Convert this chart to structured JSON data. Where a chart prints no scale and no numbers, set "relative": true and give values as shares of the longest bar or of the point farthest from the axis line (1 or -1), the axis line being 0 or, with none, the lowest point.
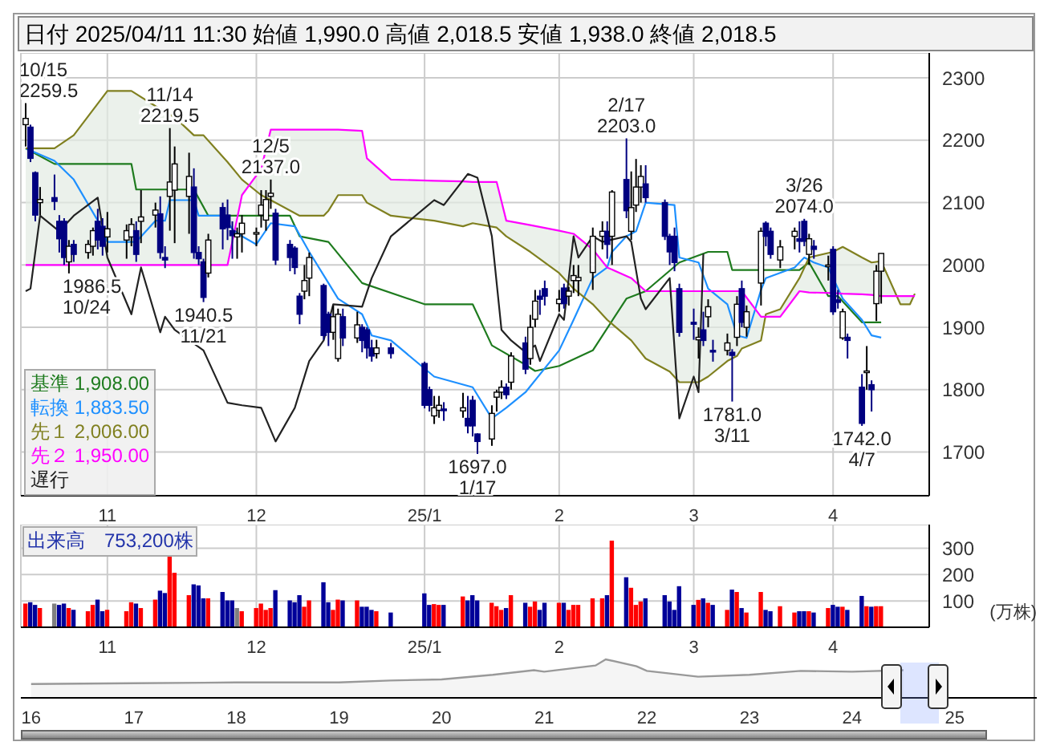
{
  "chart_data": [
    {
      "type": "candlestick",
      "title": "日付 2025/04/11 11:30 始値 1,990.0 高値 2,018.5 安値 1,938.0 終値 2,018.5",
      "x": [
        "2024-10-15",
        "2024-10-16",
        "2024-10-17",
        "2024-10-18",
        "2024-10-21",
        "2024-10-22",
        "2024-10-23",
        "2024-10-24",
        "2024-10-25",
        "2024-10-28",
        "2024-10-29",
        "2024-10-30",
        "2024-10-31",
        "2024-11-01",
        "2024-11-05",
        "2024-11-06",
        "2024-11-07",
        "2024-11-08",
        "2024-11-11",
        "2024-11-12",
        "2024-11-13",
        "2024-11-14",
        "2024-11-15",
        "2024-11-18",
        "2024-11-19",
        "2024-11-20",
        "2024-11-21",
        "2024-11-22",
        "2024-11-25",
        "2024-11-26",
        "2024-11-27",
        "2024-11-28",
        "2024-11-29",
        "2024-12-02",
        "2024-12-03",
        "2024-12-04",
        "2024-12-05",
        "2024-12-06",
        "2024-12-09",
        "2024-12-10",
        "2024-12-11",
        "2024-12-12",
        "2024-12-13",
        "2024-12-16",
        "2024-12-17",
        "2024-12-18",
        "2024-12-19",
        "2024-12-20",
        "2024-12-23",
        "2024-12-24",
        "2024-12-25",
        "2024-12-26",
        "2024-12-27",
        "2024-12-30",
        "2025-01-06",
        "2025-01-07",
        "2025-01-08",
        "2025-01-09",
        "2025-01-10",
        "2025-01-14",
        "2025-01-15",
        "2025-01-16",
        "2025-01-17",
        "2025-01-20",
        "2025-01-21",
        "2025-01-22",
        "2025-01-23",
        "2025-01-24",
        "2025-01-27",
        "2025-01-28",
        "2025-01-29",
        "2025-01-30",
        "2025-01-31",
        "2025-02-03",
        "2025-02-04",
        "2025-02-05",
        "2025-02-06",
        "2025-02-07",
        "2025-02-10",
        "2025-02-12",
        "2025-02-13",
        "2025-02-14",
        "2025-02-17",
        "2025-02-18",
        "2025-02-19",
        "2025-02-20",
        "2025-02-21",
        "2025-02-25",
        "2025-02-26",
        "2025-02-27",
        "2025-02-28",
        "2025-03-03",
        "2025-03-04",
        "2025-03-05",
        "2025-03-06",
        "2025-03-07",
        "2025-03-10",
        "2025-03-11",
        "2025-03-12",
        "2025-03-13",
        "2025-03-14",
        "2025-03-17",
        "2025-03-18",
        "2025-03-19",
        "2025-03-21",
        "2025-03-24",
        "2025-03-25",
        "2025-03-26",
        "2025-03-27",
        "2025-03-28",
        "2025-03-31",
        "2025-04-01",
        "2025-04-02",
        "2025-04-03",
        "2025-04-04",
        "2025-04-07",
        "2025-04-08",
        "2025-04-09",
        "2025-04-10",
        "2025-04-11"
      ],
      "ohlc": [
        [
          2225,
          2259.5,
          2190,
          2235
        ],
        [
          2221,
          2225,
          2165,
          2171
        ],
        [
          2148,
          2150,
          2070,
          2080
        ],
        [
          2100,
          2125,
          2080,
          2105
        ],
        [
          2108,
          2145,
          2088,
          2102
        ],
        [
          2070,
          2080,
          2020,
          2042
        ],
        [
          2070,
          2075,
          2000,
          2012
        ],
        [
          2005,
          2040,
          1986.5,
          2030
        ],
        [
          2033,
          2040,
          2005,
          2017
        ],
        [
          2020,
          2040,
          2010,
          2033
        ],
        [
          2030,
          2060,
          2015,
          2055
        ],
        [
          2070,
          2090,
          2025,
          2040
        ],
        [
          2062,
          2075,
          2015,
          2030
        ],
        [
          2045,
          2085,
          2020,
          2058
        ],
        [
          2040,
          2065,
          2010,
          2055
        ],
        [
          2045,
          2075,
          2030,
          2065
        ],
        [
          2055,
          2070,
          2005,
          2017
        ],
        [
          2070,
          2120,
          2035,
          2077
        ],
        [
          2080,
          2100,
          2060,
          2088
        ],
        [
          2082,
          2110,
          2010,
          2020
        ],
        [
          2012,
          2030,
          1995,
          2008
        ],
        [
          2110,
          2219.5,
          2055,
          2133
        ],
        [
          2120,
          2190,
          2035,
          2162
        ],
        [
          2110,
          2180,
          2050,
          2142
        ],
        [
          2125,
          2155,
          2010,
          2020
        ],
        [
          2020,
          2030,
          2000,
          2010
        ],
        [
          2005,
          2010,
          1940.5,
          1948
        ],
        [
          1987,
          2050,
          1980,
          2040
        ],
        [
          2092,
          2100,
          2025,
          2058
        ],
        [
          2080,
          2105,
          2040,
          2060
        ],
        [
          2055,
          2070,
          2010,
          2047
        ],
        [
          2045,
          2060,
          2010,
          2050
        ],
        [
          2050,
          2080,
          2020,
          2067
        ],
        [
          2050,
          2060,
          2030,
          2052
        ],
        [
          2080,
          2120,
          2060,
          2096
        ],
        [
          2072,
          2120,
          2055,
          2105
        ],
        [
          2110,
          2137,
          2090,
          2115
        ],
        [
          2083,
          2090,
          2000,
          2008
        ],
        [
          2033,
          2040,
          1990,
          2012
        ],
        [
          2027,
          2030,
          1985,
          1996
        ],
        [
          1950,
          1955,
          1905,
          1921
        ],
        [
          1958,
          2000,
          1945,
          1975
        ],
        [
          1979,
          2020,
          1950,
          2012
        ],
        [
          1967,
          1970,
          1880,
          1887
        ],
        [
          1921,
          1925,
          1870,
          1892
        ],
        [
          1892,
          1935,
          1880,
          1917
        ],
        [
          1850,
          1930,
          1845,
          1921
        ],
        [
          1917,
          1930,
          1870,
          1883
        ],
        [
          1883,
          1925,
          1875,
          1904
        ],
        [
          1900,
          1905,
          1860,
          1879
        ],
        [
          1896,
          1900,
          1850,
          1867
        ],
        [
          1867,
          1880,
          1845,
          1854
        ],
        [
          1858,
          1880,
          1850,
          1867
        ],
        [
          1867,
          1875,
          1850,
          1858
        ],
        [
          1842,
          1845,
          1770,
          1775
        ],
        [
          1800,
          1805,
          1765,
          1775
        ],
        [
          1758,
          1790,
          1745,
          1771
        ],
        [
          1767,
          1790,
          1755,
          1775
        ],
        [
          1769,
          1780,
          1750,
          1767
        ],
        [
          1766,
          1795,
          1755,
          1771
        ],
        [
          1754,
          1790,
          1730,
          1742
        ],
        [
          1783,
          1790,
          1725,
          1742
        ],
        [
          1729,
          1730,
          1697,
          1717
        ],
        [
          1721,
          1775,
          1710,
          1762
        ],
        [
          1788,
          1800,
          1765,
          1796
        ],
        [
          1796,
          1815,
          1785,
          1804
        ],
        [
          1804,
          1810,
          1785,
          1792
        ],
        [
          1812,
          1860,
          1800,
          1854
        ],
        [
          1875,
          1885,
          1825,
          1833
        ],
        [
          1850,
          1920,
          1840,
          1900
        ],
        [
          1913,
          1960,
          1900,
          1942
        ],
        [
          1950,
          1960,
          1920,
          1945
        ],
        [
          1962,
          1975,
          1935,
          1950
        ],
        [
          1938,
          1960,
          1925,
          1945
        ],
        [
          1963,
          1970,
          1930,
          1938
        ],
        [
          1950,
          1965,
          1935,
          1958
        ],
        [
          1975,
          2000,
          1955,
          1983
        ],
        [
          1975,
          2000,
          1950,
          1980
        ],
        [
          1988,
          2060,
          1960,
          2046
        ],
        [
          2046,
          2070,
          2025,
          2054
        ],
        [
          2054,
          2070,
          2010,
          2033
        ],
        [
          2046,
          2120,
          2000,
          2117
        ],
        [
          2137,
          2203,
          2075,
          2087
        ],
        [
          2054,
          2150,
          2040,
          2092
        ],
        [
          2096,
          2170,
          2085,
          2125
        ],
        [
          2125,
          2160,
          2100,
          2142
        ],
        [
          2130,
          2160,
          2100,
          2108
        ],
        [
          2100,
          2105,
          2040,
          2046
        ],
        [
          2046,
          2050,
          2000,
          2021
        ],
        [
          2046,
          2060,
          1990,
          2004
        ],
        [
          1962,
          1970,
          1885,
          1892
        ],
        [
          1908,
          1930,
          1880,
          1905
        ],
        [
          1880,
          1900,
          1850,
          1884
        ],
        [
          1896,
          1925,
          1870,
          1879
        ],
        [
          1917,
          1945,
          1900,
          1933
        ],
        [
          1863,
          1880,
          1845,
          1862
        ],
        [
          1863,
          1890,
          1855,
          1875
        ],
        [
          1860,
          1865,
          1781,
          1855
        ],
        [
          1884,
          1950,
          1870,
          1937
        ],
        [
          1962,
          1975,
          1900,
          1908
        ],
        [
          1900,
          1935,
          1885,
          1925
        ],
        [
          1971,
          2060,
          1935,
          2054
        ],
        [
          2067,
          2070,
          2030,
          2046
        ],
        [
          2054,
          2060,
          2010,
          2017
        ],
        [
          2008,
          2040,
          1995,
          2029
        ],
        [
          2046,
          2060,
          2025,
          2054
        ],
        [
          2042,
          2070,
          2020,
          2038
        ],
        [
          2070,
          2074,
          2030,
          2038
        ],
        [
          2017,
          2050,
          2000,
          2042
        ],
        [
          2030,
          2040,
          2010,
          2025
        ],
        [
          1998,
          2015,
          1975,
          2000
        ],
        [
          2025,
          2030,
          1920,
          1925
        ],
        [
          1944,
          1960,
          1930,
          1940
        ],
        [
          1883,
          1930,
          1880,
          1925
        ],
        [
          1884,
          1890,
          1850,
          1879
        ],
        [
          1804,
          1825,
          1742,
          1746
        ],
        [
          1828,
          1870,
          1800,
          1830
        ],
        [
          1808,
          1815,
          1765,
          1800
        ],
        [
          1938,
          2000,
          1910,
          1990
        ],
        [
          1990,
          2018.5,
          1938,
          2018.5
        ]
      ],
      "colors": [
        "#ffffff",
        "#000080",
        "#000080",
        "#ffffff",
        "#000080",
        "#000080",
        "#000080",
        "#ffffff",
        "#000080",
        "#ffffff",
        "#ffffff",
        "#000080",
        "#000080",
        "#ffffff",
        "#ffffff",
        "#ffffff",
        "#000080",
        "#ffffff",
        "#ffffff",
        "#000080",
        "#000080",
        "#ffffff",
        "#ffffff",
        "#ffffff",
        "#000080",
        "#000080",
        "#000080",
        "#ffffff",
        "#000080",
        "#000080",
        "#000080",
        "#ffffff",
        "#ffffff",
        "#ffffff",
        "#ffffff",
        "#ffffff",
        "#ffffff",
        "#000080",
        "#000080",
        "#000080",
        "#000080",
        "#ffffff",
        "#ffffff",
        "#000080",
        "#000080",
        "#ffffff",
        "#ffffff",
        "#000080",
        "#ffffff",
        "#000080",
        "#000080",
        "#000080",
        "#ffffff",
        "#000080",
        "#000080",
        "#000080",
        "#ffffff",
        "#ffffff",
        "#000080",
        "#ffffff",
        "#000080",
        "#000080",
        "#000080",
        "#ffffff",
        "#ffffff",
        "#ffffff",
        "#000080",
        "#ffffff",
        "#000080",
        "#ffffff",
        "#ffffff",
        "#000080",
        "#000080",
        "#ffffff",
        "#000080",
        "#ffffff",
        "#ffffff",
        "#ffffff",
        "#ffffff",
        "#ffffff",
        "#000080",
        "#ffffff",
        "#000080",
        "#ffffff",
        "#ffffff",
        "#ffffff",
        "#000080",
        "#000080",
        "#000080",
        "#000080",
        "#000080",
        "#000080",
        "#ffffff",
        "#000080",
        "#ffffff",
        "#000080",
        "#ffffff",
        "#000080",
        "#ffffff",
        "#000080",
        "#ffffff",
        "#ffffff",
        "#000080",
        "#000080",
        "#ffffff",
        "#ffffff",
        "#000080",
        "#000080",
        "#ffffff",
        "#000080",
        "#ffffff",
        "#000080",
        "#000080",
        "#ffffff",
        "#000080",
        "#000080",
        "#ffffff",
        "#000080",
        "#ffffff",
        "#ffffff"
      ],
      "series": [
        {
          "type": "line",
          "name": "基準 1,908.00",
          "color": "#1e7b1e",
          "x": [
            "2024-10-15",
            "2024-10-21",
            "2024-11-06",
            "2024-11-07",
            "2024-11-19",
            "2024-11-22",
            "2024-12-09",
            "2024-12-11",
            "2024-12-17",
            "2024-12-24",
            "2025-01-06",
            "2025-01-16",
            "2025-01-20",
            "2025-01-27",
            "2025-01-29",
            "2025-02-03",
            "2025-02-10",
            "2025-02-17",
            "2025-02-21",
            "2025-02-28",
            "2025-03-06",
            "2025-03-10",
            "2025-03-11",
            "2025-03-25",
            "2025-03-27",
            "2025-03-31",
            "2025-04-02",
            "2025-04-07",
            "2025-04-11"
          ],
          "values": [
            2187,
            2162,
            2162,
            2121,
            2121,
            2079,
            2079,
            2046,
            2037,
            1971,
            1937,
            1937,
            1871,
            1840,
            1830,
            1838,
            1863,
            1946,
            1958,
            2004,
            2021,
            2021,
            1992,
            1992,
            2004,
            1950,
            1950,
            1908,
            1908
          ]
        },
        {
          "type": "line",
          "name": "転換 1,883.50",
          "color": "#1e90ff",
          "x": [
            "2024-10-15",
            "2024-10-21",
            "2024-10-25",
            "2024-10-30",
            "2024-11-01",
            "2024-11-07",
            "2024-11-11",
            "2024-11-13",
            "2024-11-14",
            "2024-11-19",
            "2024-11-20",
            "2024-11-25",
            "2024-11-27",
            "2024-11-29",
            "2024-12-02",
            "2024-12-05",
            "2024-12-10",
            "2024-12-13",
            "2024-12-17",
            "2024-12-19",
            "2024-12-24",
            "2024-12-26",
            "2024-12-30",
            "2025-01-08",
            "2025-01-16",
            "2025-01-20",
            "2025-01-23",
            "2025-01-27",
            "2025-02-03",
            "2025-02-06",
            "2025-02-10",
            "2025-02-13",
            "2025-02-14",
            "2025-02-17",
            "2025-02-19",
            "2025-02-21",
            "2025-02-27",
            "2025-02-28",
            "2025-03-04",
            "2025-03-06",
            "2025-03-10",
            "2025-03-12",
            "2025-03-14",
            "2025-03-17",
            "2025-03-18",
            "2025-03-24",
            "2025-03-26",
            "2025-03-28",
            "2025-03-31",
            "2025-04-01",
            "2025-04-03",
            "2025-04-07",
            "2025-04-09",
            "2025-04-11"
          ],
          "values": [
            2187,
            2167,
            2137,
            2071,
            2037,
            2037,
            2071,
            2071,
            2104,
            2104,
            2079,
            2079,
            2058,
            2046,
            2033,
            2067,
            2062,
            2021,
            1971,
            1946,
            1921,
            1887,
            1879,
            1821,
            1804,
            1754,
            1771,
            1796,
            1863,
            1912,
            1979,
            1996,
            2021,
            2046,
            2054,
            2100,
            2096,
            2012,
            2004,
            1962,
            1937,
            1887,
            1883,
            1960,
            1979,
            1996,
            2012,
            2004,
            1996,
            1979,
            1946,
            1912,
            1887,
            1883.5
          ]
        },
        {
          "type": "line",
          "name": "先１ 2,006.00",
          "color": "#808020",
          "x": [
            "2024-10-15",
            "2024-10-21",
            "2024-10-25",
            "2024-11-01",
            "2024-11-06",
            "2024-11-12",
            "2024-11-15",
            "2024-11-19",
            "2024-11-21",
            "2024-11-26",
            "2024-11-29",
            "2024-12-03",
            "2024-12-05",
            "2024-12-11",
            "2024-12-16",
            "2024-12-17",
            "2024-12-19",
            "2024-12-24",
            "2024-12-25",
            "2024-12-30",
            "2025-01-08",
            "2025-01-14",
            "2025-01-16",
            "2025-01-21",
            "2025-01-23",
            "2025-01-28",
            "2025-02-03",
            "2025-02-06",
            "2025-02-10",
            "2025-02-13",
            "2025-02-18",
            "2025-02-21",
            "2025-02-26",
            "2025-02-28",
            "2025-03-04",
            "2025-03-06",
            "2025-03-10",
            "2025-03-12",
            "2025-03-13",
            "2025-03-17",
            "2025-03-18",
            "2025-03-21",
            "2025-03-25",
            "2025-03-27",
            "2025-04-01",
            "2025-04-03",
            "2025-04-07",
            "2025-04-09",
            "2025-04-11",
            "2025-04-15",
            "2025-04-17",
            "2025-04-18"
          ],
          "values": [
            2187,
            2187,
            2208,
            2279,
            2279,
            2250,
            2237,
            2208,
            2208,
            2165,
            2137,
            2112,
            2104,
            2079,
            2079,
            2087,
            2112,
            2112,
            2100,
            2079,
            2071,
            2062,
            2067,
            2060,
            2046,
            2021,
            1987,
            1962,
            1937,
            1912,
            1879,
            1850,
            1829,
            1812,
            1812,
            1821,
            1846,
            1854,
            1866,
            1879,
            1921,
            1929,
            1979,
            2012,
            2021,
            2029,
            2012,
            2004,
            2006,
            1937,
            1937,
            1954
          ]
        },
        {
          "type": "line",
          "name": "先２ 1,950.00",
          "color": "#ff00ff",
          "x": [
            "2024-10-15",
            "2024-10-21",
            "2024-10-25",
            "2024-11-01",
            "2024-11-06",
            "2024-11-12",
            "2024-11-15",
            "2024-11-19",
            "2024-11-21",
            "2024-11-26",
            "2024-11-29",
            "2024-12-03",
            "2024-12-05",
            "2024-12-11",
            "2024-12-16",
            "2024-12-17",
            "2024-12-19",
            "2024-12-24",
            "2024-12-25",
            "2024-12-30",
            "2025-01-08",
            "2025-01-14",
            "2025-01-16",
            "2025-01-21",
            "2025-01-23",
            "2025-01-28",
            "2025-02-03",
            "2025-02-06",
            "2025-02-10",
            "2025-02-13",
            "2025-02-18",
            "2025-02-21",
            "2025-02-26",
            "2025-02-28",
            "2025-03-04",
            "2025-03-06",
            "2025-03-10",
            "2025-03-12",
            "2025-03-13",
            "2025-03-17",
            "2025-03-18",
            "2025-03-21",
            "2025-03-25",
            "2025-03-27",
            "2025-04-01",
            "2025-04-03",
            "2025-04-07",
            "2025-04-09",
            "2025-04-11",
            "2025-04-15",
            "2025-04-17",
            "2025-04-18"
          ],
          "values": [
            2000,
            2000,
            2000,
            2000,
            2000,
            2000,
            2000,
            2000,
            2000,
            2000,
            2112,
            2154,
            2217,
            2217,
            2217,
            2217,
            2217,
            2215,
            2171,
            2137,
            2135,
            2134,
            2133,
            2133,
            2071,
            2064,
            2055,
            2050,
            2025,
            1996,
            1979,
            1958,
            1958,
            1958,
            1958,
            1958,
            1958,
            1958,
            1958,
            1917,
            1917,
            1917,
            1958,
            1956,
            1955,
            1954,
            1953,
            1952,
            1950,
            1950,
            1950,
            1950
          ]
        },
        {
          "type": "line",
          "name": "遅行",
          "color": "#222222",
          "x": [
            "2024-10-15",
            "2024-10-16",
            "2024-10-18",
            "2024-10-22",
            "2024-10-25",
            "2024-10-30",
            "2024-11-01",
            "2024-11-06",
            "2024-11-08",
            "2024-11-12",
            "2024-11-13",
            "2024-11-15",
            "2024-11-21",
            "2024-11-26",
            "2024-11-29",
            "2024-12-03",
            "2024-12-06",
            "2024-12-10",
            "2024-12-13",
            "2024-12-16",
            "2024-12-18",
            "2024-12-24",
            "2024-12-26",
            "2024-12-30",
            "2025-01-08",
            "2025-01-10",
            "2025-01-15",
            "2025-01-17",
            "2025-01-20",
            "2025-01-22",
            "2025-01-24",
            "2025-01-27",
            "2025-01-29",
            "2025-01-30",
            "2025-02-03",
            "2025-02-04",
            "2025-02-06",
            "2025-02-07",
            "2025-02-10",
            "2025-02-12",
            "2025-02-17",
            "2025-02-18",
            "2025-02-20",
            "2025-02-21",
            "2025-02-26",
            "2025-02-28",
            "2025-03-03",
            "2025-03-04",
            "2025-03-05"
          ],
          "values": [
            1958,
            1962,
            2079,
            2054,
            2079,
            2108,
            2012,
            1921,
            1996,
            1892,
            1917,
            1896,
            1863,
            1779,
            1775,
            1771,
            1717,
            1771,
            1846,
            1879,
            1937,
            1933,
            1979,
            2046,
            2104,
            2096,
            2146,
            2140,
            2046,
            1896,
            1879,
            1860,
            1871,
            1846,
            1921,
            1912,
            2046,
            2012,
            2046,
            2037,
            2046,
            2037,
            1946,
            1929,
            1979,
            1754,
            1821,
            1796,
            2018
          ]
        }
      ],
      "xlim": [
        "2024-10-14",
        "2025-04-21"
      ],
      "xticks": [
        {
          "value": "2024-11-01",
          "label": "11"
        },
        {
          "value": "2024-12-02",
          "label": "12"
        },
        {
          "value": "2025-01-06",
          "label": "25/1"
        },
        {
          "value": "2025-02-03",
          "label": "2"
        },
        {
          "value": "2025-03-03",
          "label": "3"
        },
        {
          "value": "2025-04-01",
          "label": "4"
        }
      ],
      "ylim": [
        1630,
        2340
      ],
      "yticks": [
        1700,
        1800,
        1900,
        2000,
        2100,
        2200,
        2300
      ],
      "grid": true,
      "legend": "bottom left",
      "annotations": [
        {
          "text": "10/15\n2259.5",
          "x": "2024-10-15",
          "y": 2259.5
        },
        {
          "text": "1986.5\n10/24",
          "x": "2024-10-24",
          "y": 1986.5
        },
        {
          "text": "11/14\n2219.5",
          "x": "2024-11-14",
          "y": 2219.5
        },
        {
          "text": "1940.5\n11/21",
          "x": "2024-11-21",
          "y": 1940.5
        },
        {
          "text": "12/5\n2137.0",
          "x": "2024-12-05",
          "y": 2137
        },
        {
          "text": "1697.0\n1/17",
          "x": "2025-01-17",
          "y": 1697
        },
        {
          "text": "2/17\n2203.0",
          "x": "2025-02-17",
          "y": 2203
        },
        {
          "text": "1781.0\n3/11",
          "x": "2025-03-11",
          "y": 1781
        },
        {
          "text": "3/26\n2074.0",
          "x": "2025-03-26",
          "y": 2074
        },
        {
          "text": "1742.0\n4/7",
          "x": "2025-04-07",
          "y": 1742
        }
      ]
    },
    {
      "type": "bar",
      "title": "出来高　753,200株",
      "ylabel": "(万株)",
      "x": [
        "2024-10-15",
        "2024-10-16",
        "2024-10-17",
        "2024-10-18",
        "2024-10-21",
        "2024-10-22",
        "2024-10-23",
        "2024-10-24",
        "2024-10-25",
        "2024-10-28",
        "2024-10-29",
        "2024-10-30",
        "2024-10-31",
        "2024-11-01",
        "2024-11-05",
        "2024-11-06",
        "2024-11-07",
        "2024-11-08",
        "2024-11-11",
        "2024-11-12",
        "2024-11-13",
        "2024-11-14",
        "2024-11-15",
        "2024-11-18",
        "2024-11-19",
        "2024-11-20",
        "2024-11-21",
        "2024-11-22",
        "2024-11-25",
        "2024-11-26",
        "2024-11-27",
        "2024-11-28",
        "2024-11-29",
        "2024-12-02",
        "2024-12-03",
        "2024-12-04",
        "2024-12-05",
        "2024-12-06",
        "2024-12-09",
        "2024-12-10",
        "2024-12-11",
        "2024-12-12",
        "2024-12-13",
        "2024-12-16",
        "2024-12-17",
        "2024-12-18",
        "2024-12-19",
        "2024-12-20",
        "2024-12-23",
        "2024-12-24",
        "2024-12-25",
        "2024-12-26",
        "2024-12-27",
        "2024-12-30",
        "2025-01-06",
        "2025-01-07",
        "2025-01-08",
        "2025-01-09",
        "2025-01-10",
        "2025-01-14",
        "2025-01-15",
        "2025-01-16",
        "2025-01-17",
        "2025-01-20",
        "2025-01-21",
        "2025-01-22",
        "2025-01-23",
        "2025-01-24",
        "2025-01-27",
        "2025-01-28",
        "2025-01-29",
        "2025-01-30",
        "2025-01-31",
        "2025-02-03",
        "2025-02-04",
        "2025-02-05",
        "2025-02-06",
        "2025-02-07",
        "2025-02-10",
        "2025-02-12",
        "2025-02-13",
        "2025-02-14",
        "2025-02-17",
        "2025-02-18",
        "2025-02-19",
        "2025-02-20",
        "2025-02-21",
        "2025-02-25",
        "2025-02-26",
        "2025-02-27",
        "2025-02-28",
        "2025-03-03",
        "2025-03-04",
        "2025-03-05",
        "2025-03-06",
        "2025-03-07",
        "2025-03-10",
        "2025-03-11",
        "2025-03-12",
        "2025-03-13",
        "2025-03-14",
        "2025-03-17",
        "2025-03-18",
        "2025-03-19",
        "2025-03-21",
        "2025-03-24",
        "2025-03-25",
        "2025-03-26",
        "2025-03-27",
        "2025-03-28",
        "2025-03-31",
        "2025-04-01",
        "2025-04-02",
        "2025-04-03",
        "2025-04-04",
        "2025-04-07",
        "2025-04-08",
        "2025-04-09",
        "2025-04-10",
        "2025-04-11"
      ],
      "values": [
        90,
        95,
        85,
        73,
        90,
        85,
        90,
        73,
        66,
        61,
        85,
        105,
        61,
        66,
        61,
        95,
        90,
        73,
        105,
        139,
        130,
        268,
        207,
        122,
        163,
        159,
        110,
        110,
        134,
        102,
        102,
        73,
        61,
        73,
        90,
        66,
        73,
        141,
        102,
        95,
        122,
        78,
        102,
        171,
        95,
        66,
        105,
        102,
        102,
        78,
        78,
        66,
        61,
        56,
        129,
        85,
        88,
        85,
        85,
        117,
        102,
        122,
        102,
        93,
        80,
        66,
        73,
        122,
        93,
        78,
        98,
        66,
        93,
        93,
        93,
        66,
        85,
        85,
        110,
        110,
        122,
        329,
        190,
        150,
        85,
        98,
        110,
        122,
        98,
        66,
        156,
        85,
        104,
        110,
        93,
        85,
        66,
        143,
        134,
        73,
        56,
        134,
        66,
        61,
        80,
        56,
        61,
        61,
        61,
        56,
        73,
        85,
        78,
        78,
        66,
        119,
        80,
        78,
        80,
        80
      ],
      "colors": [
        "#ff0000",
        "#000099",
        "#000099",
        "#ff0000",
        "#808080",
        "#000099",
        "#000099",
        "#ff0000",
        "#000099",
        "#ff0000",
        "#ff0000",
        "#000099",
        "#000099",
        "#ff0000",
        "#ff0000",
        "#ff0000",
        "#000099",
        "#ff0000",
        "#ff0000",
        "#000099",
        "#000099",
        "#ff0000",
        "#ff0000",
        "#ff0000",
        "#000099",
        "#000099",
        "#000099",
        "#ff0000",
        "#000099",
        "#000099",
        "#000099",
        "#808080",
        "#ff0000",
        "#ff0000",
        "#ff0000",
        "#ff0000",
        "#ff0000",
        "#000099",
        "#000099",
        "#000099",
        "#000099",
        "#ff0000",
        "#ff0000",
        "#000099",
        "#000099",
        "#ff0000",
        "#ff0000",
        "#000099",
        "#ff0000",
        "#000099",
        "#000099",
        "#000099",
        "#ff0000",
        "#000099",
        "#000099",
        "#000099",
        "#ff0000",
        "#ff0000",
        "#000099",
        "#ff0000",
        "#000099",
        "#000099",
        "#000099",
        "#ff0000",
        "#ff0000",
        "#ff0000",
        "#000099",
        "#ff0000",
        "#000099",
        "#ff0000",
        "#ff0000",
        "#000099",
        "#000099",
        "#ff0000",
        "#000099",
        "#ff0000",
        "#ff0000",
        "#ff0000",
        "#ff0000",
        "#ff0000",
        "#000099",
        "#ff0000",
        "#000099",
        "#ff0000",
        "#ff0000",
        "#ff0000",
        "#000099",
        "#000099",
        "#000099",
        "#000099",
        "#000099",
        "#000099",
        "#ff0000",
        "#000099",
        "#ff0000",
        "#000099",
        "#ff0000",
        "#000099",
        "#ff0000",
        "#000099",
        "#ff0000",
        "#ff0000",
        "#000099",
        "#000099",
        "#ff0000",
        "#ff0000",
        "#000099",
        "#000099",
        "#ff0000",
        "#000099",
        "#ff0000",
        "#000099",
        "#000099",
        "#ff0000",
        "#000099",
        "#000099",
        "#ff0000",
        "#000099",
        "#ff0000",
        "#ff0000"
      ],
      "xlim": [
        "2024-10-14",
        "2025-04-21"
      ],
      "xticks": [
        {
          "value": "2024-11-01",
          "label": "11"
        },
        {
          "value": "2024-12-02",
          "label": "12"
        },
        {
          "value": "2025-01-06",
          "label": "25/1"
        },
        {
          "value": "2025-02-03",
          "label": "2"
        },
        {
          "value": "2025-03-03",
          "label": "3"
        },
        {
          "value": "2025-04-01",
          "label": "4"
        }
      ],
      "ylim": [
        0,
        390
      ],
      "yticks": [
        100,
        200,
        300
      ],
      "grid": true
    },
    {
      "type": "area",
      "relative": true,
      "color": "#999999",
      "x": [
        2016,
        2017,
        2018,
        2019,
        2019.5,
        2020,
        2020.5,
        2020.9,
        2021,
        2021.5,
        2021.6,
        2021.9,
        2022,
        2022.5,
        2023,
        2023.5,
        2024,
        2024.5
      ],
      "values": [
        0.36,
        0.38,
        0.4,
        0.4,
        0.45,
        0.48,
        0.6,
        0.72,
        0.68,
        0.84,
        1,
        0.82,
        0.7,
        0.55,
        0.6,
        0.7,
        0.68,
        0.72
      ],
      "xlim": [
        2015.9,
        2025.8
      ],
      "xticks": [
        {
          "value": 2016,
          "label": "16"
        },
        {
          "value": 2017,
          "label": "17"
        },
        {
          "value": 2018,
          "label": "18"
        },
        {
          "value": 2019,
          "label": "19"
        },
        {
          "value": 2020,
          "label": "20"
        },
        {
          "value": 2021,
          "label": "21"
        },
        {
          "value": 2022,
          "label": "22"
        },
        {
          "value": 2023,
          "label": "23"
        },
        {
          "value": 2024,
          "label": "24"
        },
        {
          "value": 2025,
          "label": "25"
        }
      ]
    }
  ]
}
